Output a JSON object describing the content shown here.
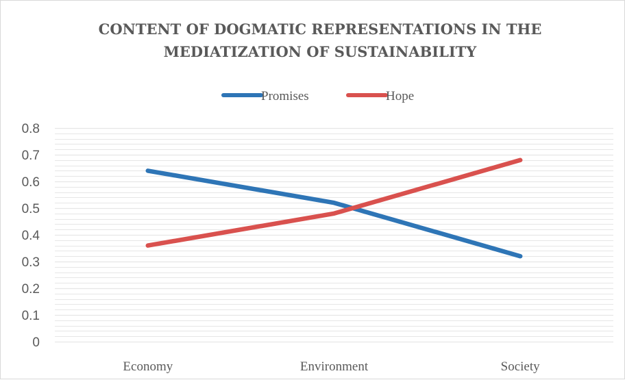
{
  "chart_data": {
    "type": "line",
    "title_lines": [
      "CONTENT OF DOGMATIC REPRESENTATIONS IN THE",
      "MEDIATIZATION OF SUSTAINABILITY"
    ],
    "categories": [
      "Economy",
      "Environment",
      "Society"
    ],
    "series": [
      {
        "name": "Promises",
        "values": [
          0.64,
          0.52,
          0.32
        ],
        "color": "#2E75B6"
      },
      {
        "name": "Hope",
        "values": [
          0.36,
          0.48,
          0.68
        ],
        "color": "#D9514E"
      }
    ],
    "yticks": [
      "0",
      "0.1",
      "0.2",
      "0.3",
      "0.4",
      "0.5",
      "0.6",
      "0.7",
      "0.8"
    ],
    "ylim": [
      0,
      0.8
    ],
    "major_step": 0.1,
    "minor_step": 0.02,
    "legend_position": "top-center",
    "grid": true,
    "gridline_color": "#e6e6e6"
  }
}
